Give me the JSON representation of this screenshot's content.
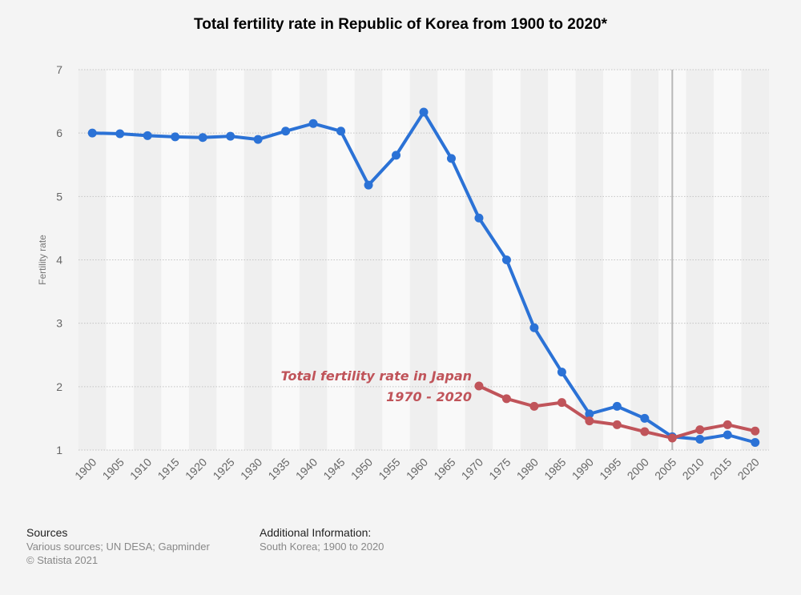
{
  "chart_data": {
    "type": "line",
    "title": "Total fertility rate in Republic of Korea from 1900 to 2020*",
    "ylabel": "Fertility rate",
    "xlabel": "",
    "ylim": [
      1,
      7
    ],
    "yticks": [
      1,
      2,
      3,
      4,
      5,
      6,
      7
    ],
    "x": [
      1900,
      1905,
      1910,
      1915,
      1920,
      1925,
      1930,
      1935,
      1940,
      1945,
      1950,
      1955,
      1960,
      1965,
      1970,
      1975,
      1980,
      1985,
      1990,
      1995,
      2000,
      2005,
      2010,
      2015,
      2020
    ],
    "grid": true,
    "vertical_marker": 2005,
    "series": [
      {
        "color": "#2b72d6",
        "x": [
          1900,
          1905,
          1910,
          1915,
          1920,
          1925,
          1930,
          1935,
          1940,
          1945,
          1950,
          1955,
          1960,
          1965,
          1970,
          1975,
          1980,
          1985,
          1990,
          1995,
          2000,
          2005,
          2010,
          2015,
          2020
        ],
        "values": [
          6.0,
          5.99,
          5.96,
          5.94,
          5.93,
          5.95,
          5.9,
          6.03,
          6.15,
          6.03,
          5.18,
          5.65,
          6.33,
          5.6,
          4.66,
          4.0,
          2.93,
          2.23,
          1.57,
          1.69,
          1.5,
          1.21,
          1.17,
          1.24,
          1.12
        ]
      },
      {
        "name": "Total fertility rate in Japan 1970 - 2020",
        "color": "#c0545a",
        "x": [
          1970,
          1975,
          1980,
          1985,
          1990,
          1995,
          2000,
          2005,
          2010,
          2015,
          2020
        ],
        "values": [
          2.01,
          1.81,
          1.69,
          1.75,
          1.46,
          1.4,
          1.29,
          1.19,
          1.32,
          1.4,
          1.3
        ]
      }
    ],
    "annotation": {
      "lines": [
        "Total fertility rate in Japan",
        "1970 - 2020"
      ],
      "color": "#c0545a"
    }
  },
  "footer": {
    "sources_title": "Sources",
    "sources_lines": [
      "Various sources; UN DESA; Gapminder",
      "© Statista 2021"
    ],
    "info_title": "Additional Information:",
    "info_lines": [
      "South Korea; 1900 to 2020"
    ]
  }
}
